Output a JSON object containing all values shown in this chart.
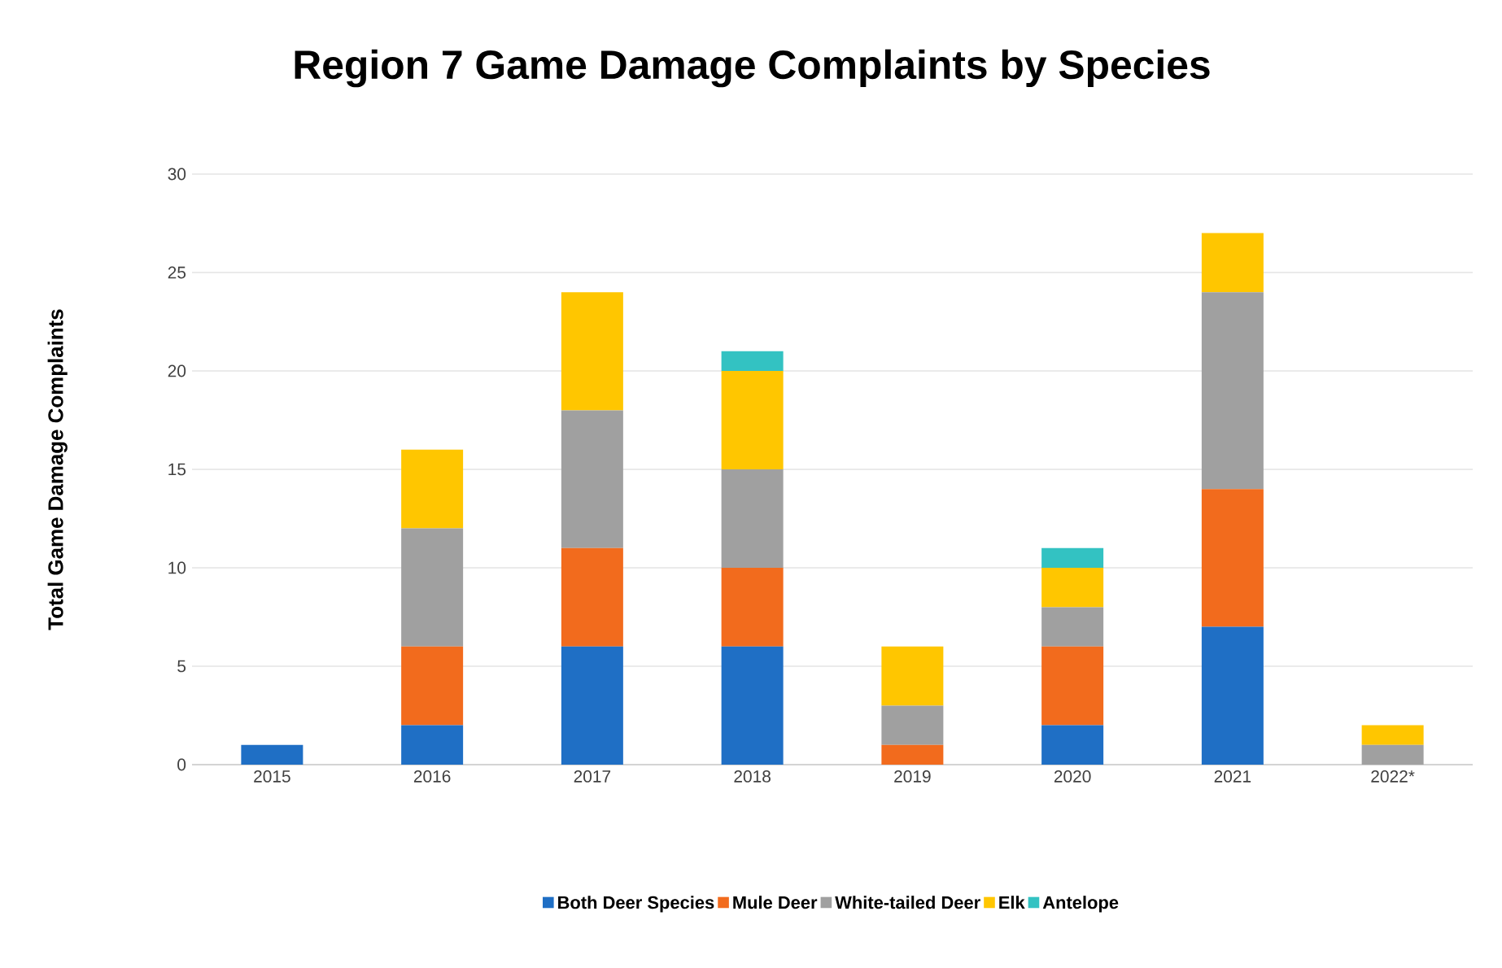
{
  "chart_data": {
    "type": "bar",
    "stacked": true,
    "title": "Region 7 Game Damage Complaints by Species",
    "ylabel": "Total Game Damage Complaints",
    "categories": [
      "2015",
      "2016",
      "2017",
      "2018",
      "2019",
      "2020",
      "2021",
      "2022*"
    ],
    "series": [
      {
        "name": "Both Deer Species",
        "color": "#1f6fc5",
        "values": [
          1,
          2,
          6,
          6,
          0,
          2,
          7,
          0
        ]
      },
      {
        "name": "Mule Deer",
        "color": "#f26b1d",
        "values": [
          0,
          4,
          5,
          4,
          1,
          4,
          7,
          0
        ]
      },
      {
        "name": "White-tailed Deer",
        "color": "#a0a0a0",
        "values": [
          0,
          6,
          7,
          5,
          2,
          2,
          10,
          1
        ]
      },
      {
        "name": "Elk",
        "color": "#ffc600",
        "values": [
          0,
          4,
          6,
          5,
          3,
          2,
          3,
          1
        ]
      },
      {
        "name": "Antelope",
        "color": "#33c2c2",
        "values": [
          0,
          0,
          0,
          1,
          0,
          1,
          0,
          0
        ]
      }
    ],
    "ylim": [
      0,
      30
    ],
    "yticks": [
      0,
      5,
      10,
      15,
      20,
      25,
      30
    ],
    "grid": "y",
    "legend": "bottom"
  }
}
